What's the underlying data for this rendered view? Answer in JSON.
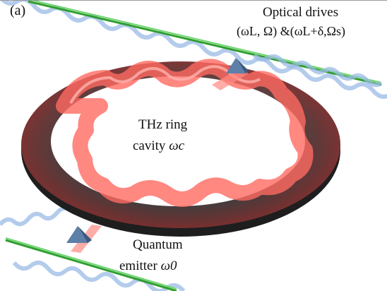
{
  "panel_label": "(a)",
  "drives": {
    "title": "Optical drives",
    "params": "(ωL, Ω) &(ωL+δ,Ωs)"
  },
  "cavity": {
    "line1": "THz ring",
    "line2_text": "cavity ",
    "line2_symbol": "ωc"
  },
  "emitter": {
    "line1": "Quantum",
    "line2_text": "emitter ",
    "line2_symbol": "ω0"
  },
  "colors": {
    "ring_surface": "#4a4a4a",
    "wave_red": "#ff5a52",
    "waveguide_green": "#3cc23c",
    "wave_blue": "#8fb3e0",
    "emitter_blue": "#5e7fa8"
  },
  "icons": {
    "emitter_upper": "pyramid-emitter-icon",
    "emitter_lower": "pyramid-emitter-icon"
  }
}
